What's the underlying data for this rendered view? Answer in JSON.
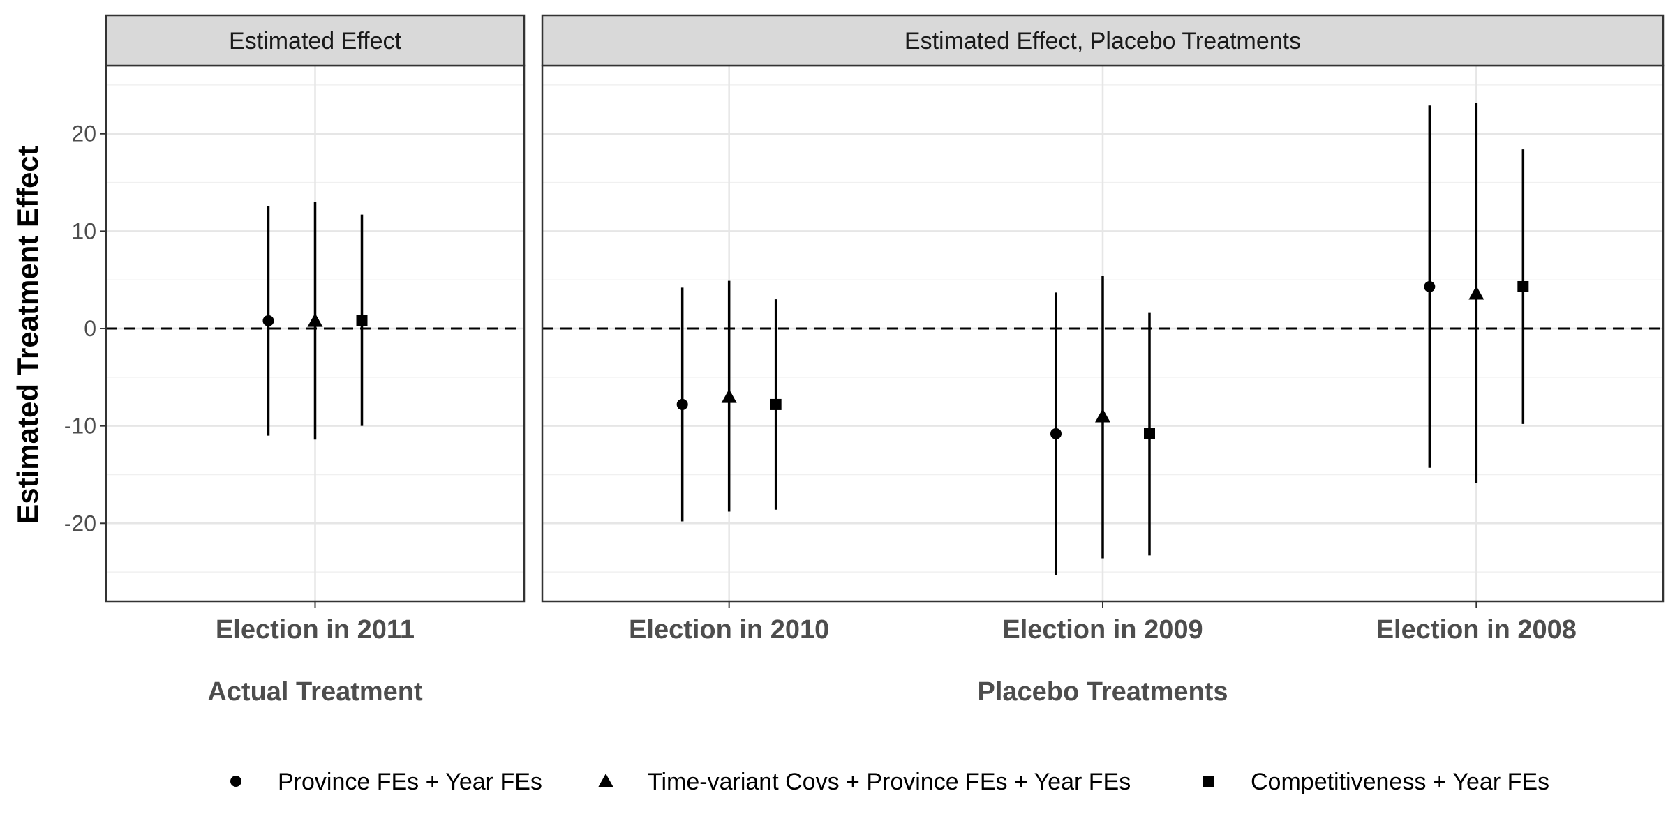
{
  "chart_data": {
    "type": "scatter",
    "subtype": "coefficient plot with error bars (faceted)",
    "ylabel": "Estimated Treatment Effect",
    "ylim": [
      -28,
      27
    ],
    "yticks": [
      -20,
      -10,
      0,
      10,
      20
    ],
    "reference_line": {
      "y": 0,
      "style": "dashed"
    },
    "grid": true,
    "legend_position": "bottom",
    "series": [
      {
        "name": "Province FEs + Year FEs",
        "marker": "circle"
      },
      {
        "name": "Time-variant Covs + Province FEs + Year FEs",
        "marker": "triangle"
      },
      {
        "name": "Competitiveness + Year FEs",
        "marker": "square"
      }
    ],
    "panels": [
      {
        "strip": "Estimated Effect",
        "xlabel": "Actual Treatment",
        "categories": [
          "Election in 2011"
        ],
        "points": [
          {
            "category": "Election in 2011",
            "series": 0,
            "estimate": 0.8,
            "lower": -11.0,
            "upper": 12.6
          },
          {
            "category": "Election in 2011",
            "series": 1,
            "estimate": 0.8,
            "lower": -11.4,
            "upper": 13.0
          },
          {
            "category": "Election in 2011",
            "series": 2,
            "estimate": 0.8,
            "lower": -10.0,
            "upper": 11.7
          }
        ]
      },
      {
        "strip": "Estimated Effect, Placebo Treatments",
        "xlabel": "Placebo Treatments",
        "categories": [
          "Election in 2010",
          "Election in 2009",
          "Election in 2008"
        ],
        "points": [
          {
            "category": "Election in 2010",
            "series": 0,
            "estimate": -7.8,
            "lower": -19.8,
            "upper": 4.2
          },
          {
            "category": "Election in 2010",
            "series": 1,
            "estimate": -7.0,
            "lower": -18.8,
            "upper": 4.9
          },
          {
            "category": "Election in 2010",
            "series": 2,
            "estimate": -7.8,
            "lower": -18.6,
            "upper": 3.0
          },
          {
            "category": "Election in 2009",
            "series": 0,
            "estimate": -10.8,
            "lower": -25.3,
            "upper": 3.7
          },
          {
            "category": "Election in 2009",
            "series": 1,
            "estimate": -9.0,
            "lower": -23.6,
            "upper": 5.4
          },
          {
            "category": "Election in 2009",
            "series": 2,
            "estimate": -10.8,
            "lower": -23.3,
            "upper": 1.6
          },
          {
            "category": "Election in 2008",
            "series": 0,
            "estimate": 4.3,
            "lower": -14.3,
            "upper": 22.9
          },
          {
            "category": "Election in 2008",
            "series": 1,
            "estimate": 3.6,
            "lower": -15.9,
            "upper": 23.2
          },
          {
            "category": "Election in 2008",
            "series": 2,
            "estimate": 4.3,
            "lower": -9.8,
            "upper": 18.4
          }
        ]
      }
    ]
  }
}
